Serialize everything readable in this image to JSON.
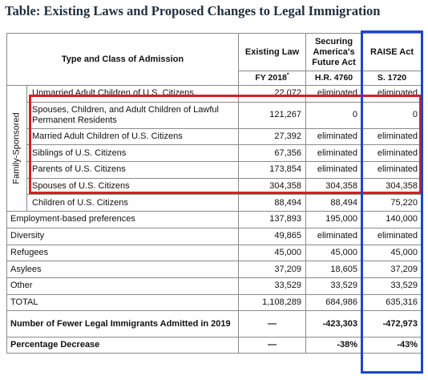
{
  "title": "Table: Existing Laws and Proposed Changes to Legal Immigration",
  "header": {
    "type_class": "Type and Class of Admission",
    "existing_law": "Existing Law",
    "existing_law_sub": "FY 2018",
    "existing_law_marker": "*",
    "securing": "Securing America's Future Act",
    "securing_sub": "H.R. 4760",
    "raise": "RAISE Act",
    "raise_sub": "S. 1720"
  },
  "side_label": "Family-Sponsored",
  "family_rows": [
    {
      "label": "Unmarried Adult Children of U.S. Citizens",
      "existing": "22,072",
      "securing": "eliminated",
      "raise": "eliminated"
    },
    {
      "label": "Spouses, Children, and Adult Children of Lawful Permanent Residents",
      "existing": "121,267",
      "securing": "0",
      "raise": "0"
    },
    {
      "label": "Married Adult Children of U.S. Citizens",
      "existing": "27,392",
      "securing": "eliminated",
      "raise": "eliminated"
    },
    {
      "label": "Siblings of U.S. Citizens",
      "existing": "67,356",
      "securing": "eliminated",
      "raise": "eliminated"
    },
    {
      "label": "Parents of U.S. Citizens",
      "existing": "173,854",
      "securing": "eliminated",
      "raise": "eliminated"
    },
    {
      "label": "Spouses of U.S. Citizens",
      "existing": "304,358",
      "securing": "304,358",
      "raise": "304,358"
    },
    {
      "label": "Children of U.S. Citizens",
      "existing": "88,494",
      "securing": "88,494",
      "raise": "75,220"
    }
  ],
  "other_rows": [
    {
      "label": "Employment-based preferences",
      "existing": "137,893",
      "securing": "195,000",
      "raise": "140,000"
    },
    {
      "label": "Diversity",
      "existing": "49,865",
      "securing": "eliminated",
      "raise": "eliminated"
    },
    {
      "label": "Refugees",
      "existing": "45,000",
      "securing": "45,000",
      "raise": "45,000"
    },
    {
      "label": "Asylees",
      "existing": "37,209",
      "securing": "18,605",
      "raise": "37,209"
    },
    {
      "label": "Other",
      "existing": "33,529",
      "securing": "33,529",
      "raise": "33,529"
    },
    {
      "label": "TOTAL",
      "existing": "1,108,289",
      "securing": "684,986",
      "raise": "635,316"
    }
  ],
  "fewer_row": {
    "label": "Number of Fewer Legal Immigrants Admitted in 2019",
    "existing": "—",
    "securing": "-423,303",
    "raise": "-472,973"
  },
  "pct_row": {
    "label": "Percentage Decrease",
    "existing": "—",
    "securing": "-38%",
    "raise": "-43%"
  },
  "colors": {
    "highlight_red": "#d71f26",
    "highlight_blue": "#1d46c8",
    "title": "#1f2f3f"
  }
}
